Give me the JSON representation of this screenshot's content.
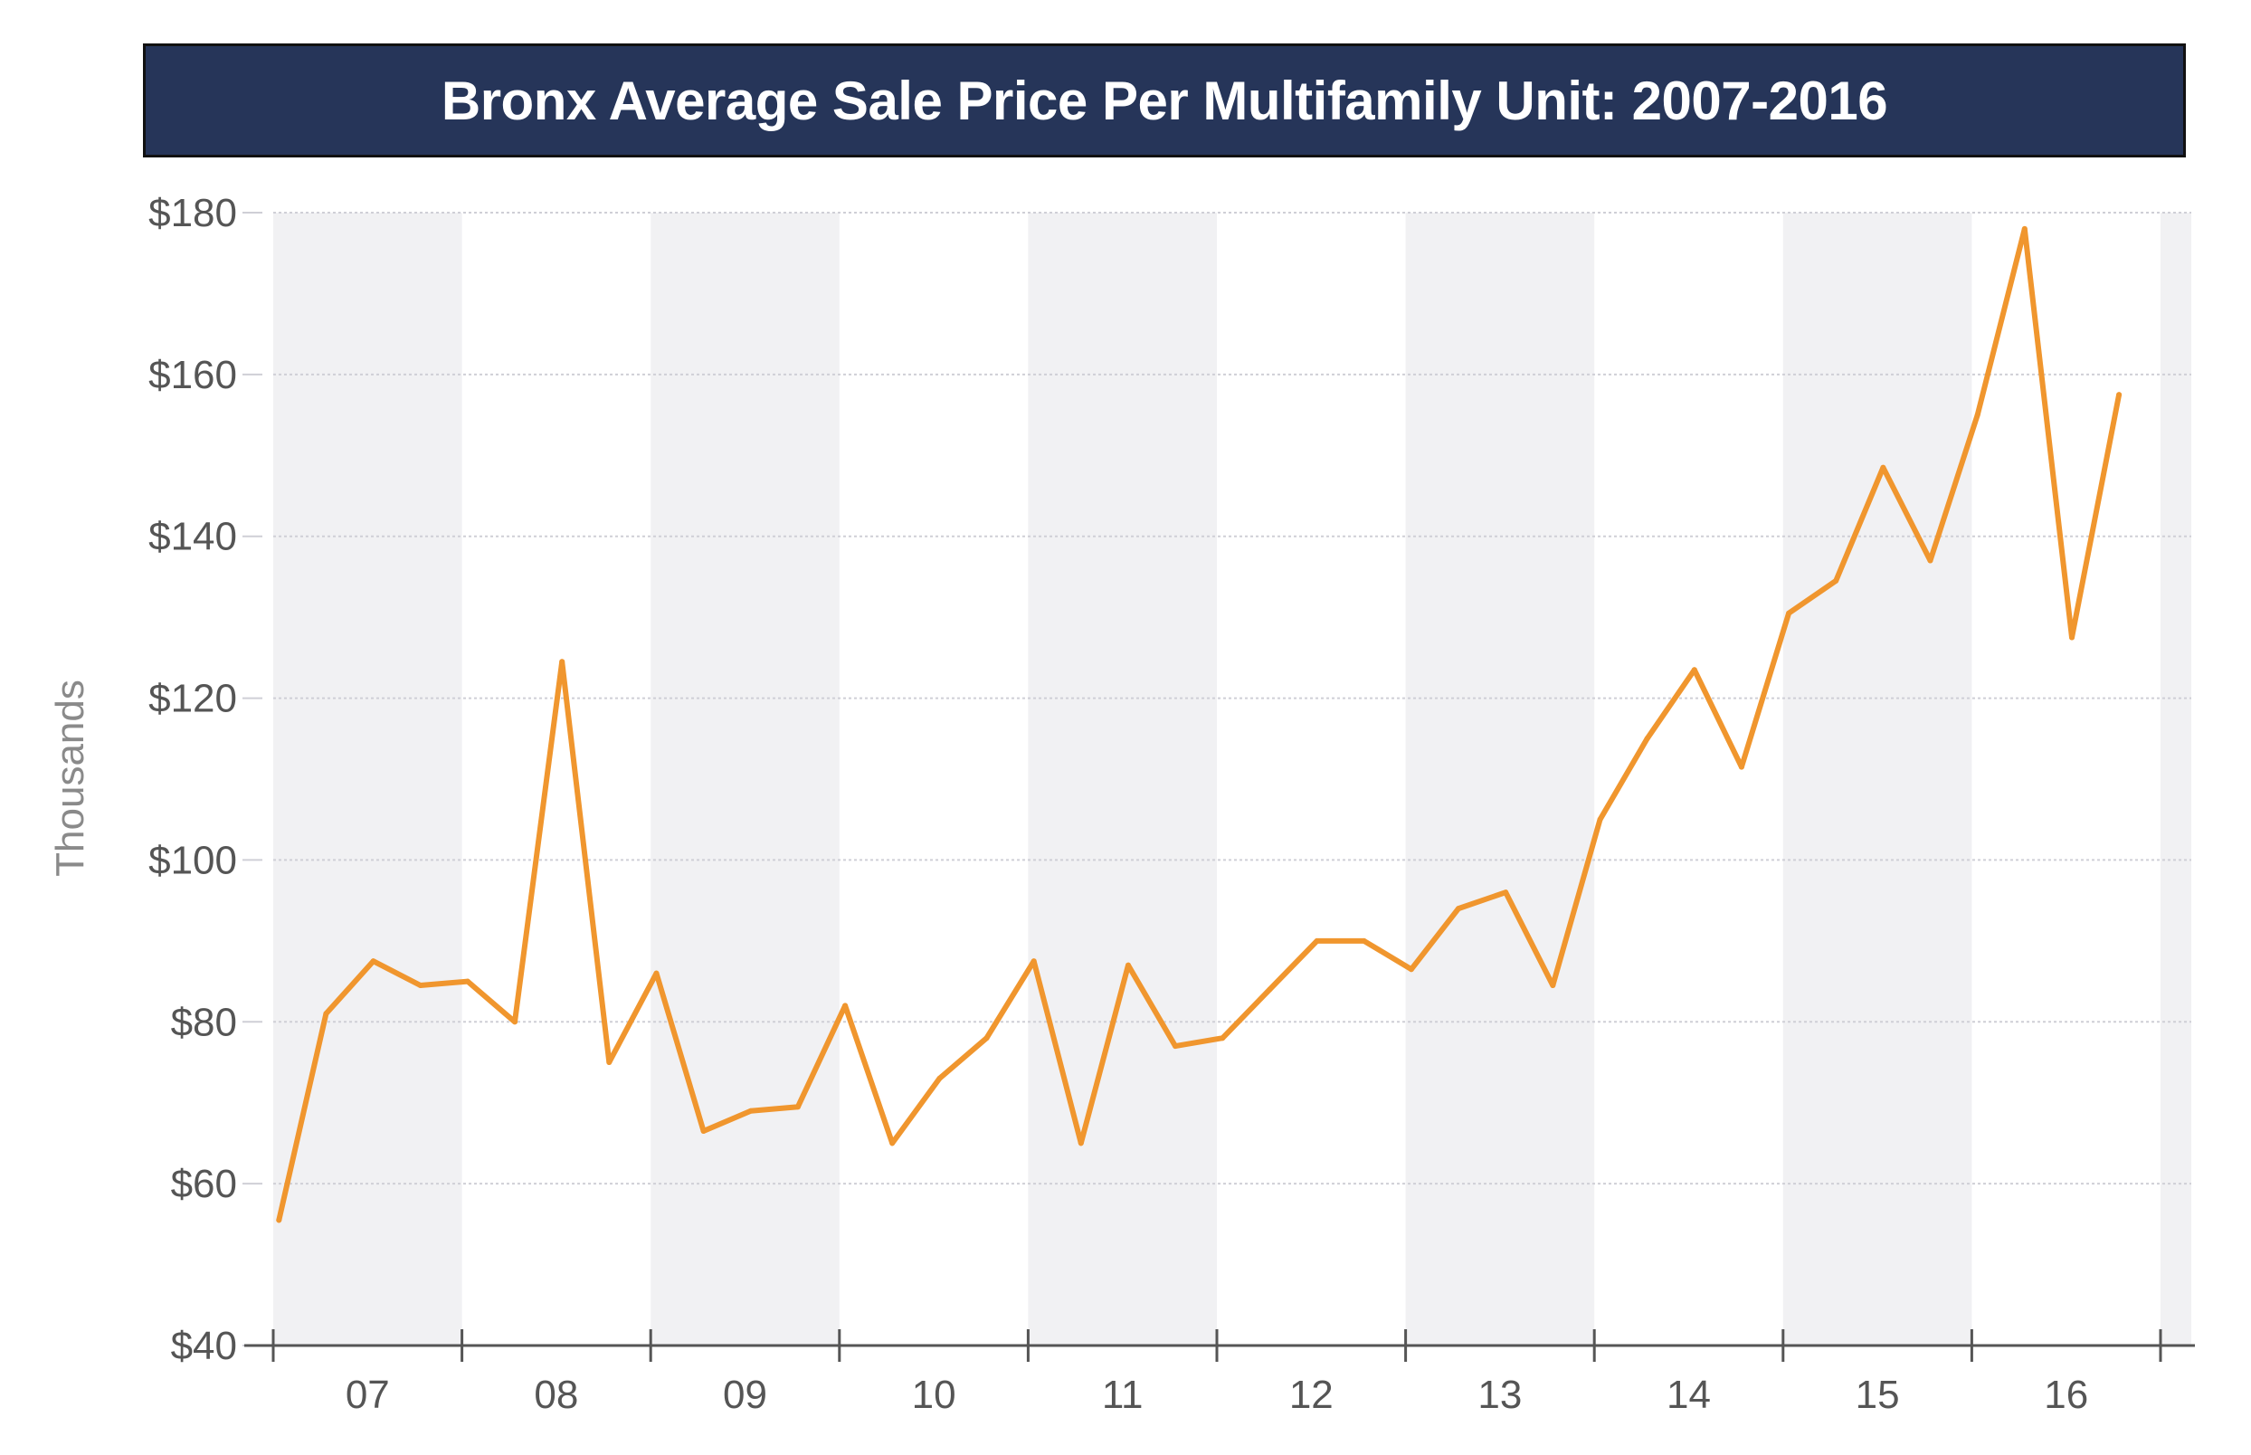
{
  "chart_data": {
    "type": "line",
    "title": "Bronx Average Sale Price Per Multifamily Unit: 2007-2016",
    "ylabel": "Thousands",
    "xlabel": "",
    "ylim": [
      40,
      180
    ],
    "y_ticks": [
      "$40",
      "$60",
      "$80",
      "$100",
      "$120",
      "$140",
      "$160",
      "$180"
    ],
    "y_tick_values": [
      40,
      60,
      80,
      100,
      120,
      140,
      160,
      180
    ],
    "x_tick_labels": [
      "07",
      "08",
      "09",
      "10",
      "11",
      "12",
      "13",
      "14",
      "15",
      "16"
    ],
    "grid": true,
    "alternating_year_bands": true,
    "colors": {
      "line": "#f0962e",
      "band": "#f1f1f3",
      "title_bg": "#263559",
      "axis": "#555555"
    },
    "series": [
      {
        "x": [
          "2007Q1",
          "2007Q2",
          "2007Q3",
          "2007Q4",
          "2008Q1",
          "2008Q2",
          "2008Q3",
          "2008Q4",
          "2009Q1",
          "2009Q2",
          "2009Q3",
          "2009Q4",
          "2010Q1",
          "2010Q2",
          "2010Q3",
          "2010Q4",
          "2011Q1",
          "2011Q2",
          "2011Q3",
          "2011Q4",
          "2012Q1",
          "2012Q2",
          "2012Q3",
          "2012Q4",
          "2013Q1",
          "2013Q2",
          "2013Q3",
          "2013Q4",
          "2014Q1",
          "2014Q2",
          "2014Q3",
          "2014Q4",
          "2015Q1",
          "2015Q2",
          "2015Q3",
          "2015Q4",
          "2016Q1",
          "2016Q2",
          "2016Q3",
          "2016Q4"
        ],
        "values": [
          55.5,
          81,
          87.5,
          84.5,
          85,
          80,
          124.5,
          75,
          86,
          66.5,
          69,
          69.5,
          82,
          65,
          73,
          78,
          87.5,
          65,
          87,
          77,
          78,
          84,
          90,
          90,
          86.5,
          94,
          96,
          84.5,
          105,
          115,
          123.5,
          111.5,
          130.5,
          134.5,
          148.5,
          137,
          155,
          178,
          127.5,
          157.5
        ]
      }
    ]
  }
}
